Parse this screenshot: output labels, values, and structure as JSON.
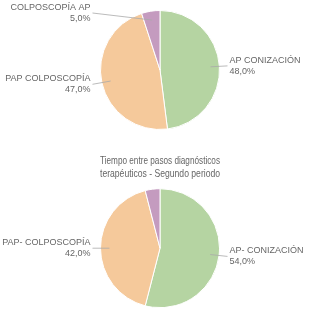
{
  "chart_data": [
    {
      "type": "pie",
      "categories": [
        "AP CONIZACIÓN",
        "PAP COLPOSCOPÍA",
        "COLPOSCOPÍA AP"
      ],
      "values": [
        48.0,
        47.0,
        5.0
      ],
      "value_labels": [
        "48,0%",
        "47,0%",
        "5,0%"
      ],
      "data_labels": true,
      "colors": [
        "#b5d4a2",
        "#f5c99b",
        "#c49bbf"
      ],
      "legend": false
    },
    {
      "type": "pie",
      "title": "Tiempo entre pasos diagnósticos terapéuticos - Segundo periodo",
      "categories": [
        "AP- CONIZACIÓN",
        "PAP- COLPOSCOPÍA",
        null
      ],
      "values": [
        54.0,
        42.0,
        4.0
      ],
      "value_labels": [
        "54,0%",
        "42,0%",
        null
      ],
      "data_labels": true,
      "colors": [
        "#b5d4a2",
        "#f5c99b",
        "#c49bbf"
      ],
      "legend": false
    }
  ]
}
